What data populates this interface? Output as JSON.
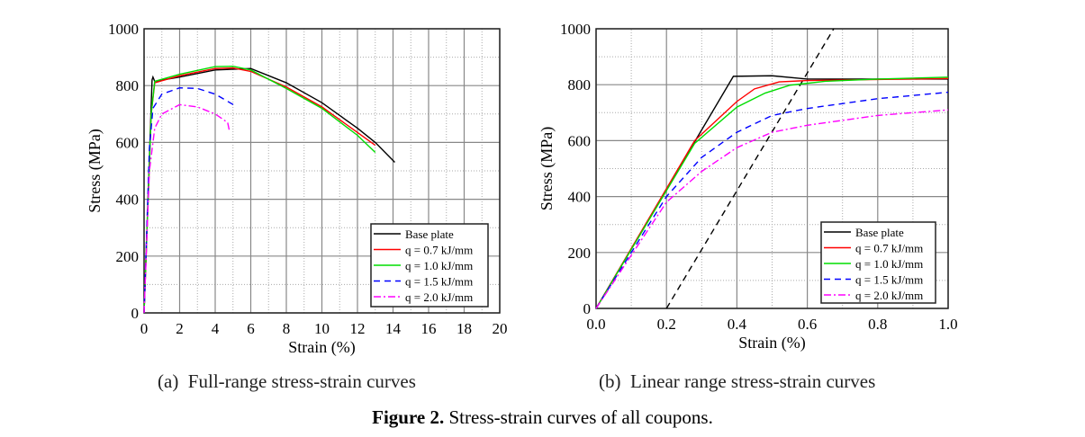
{
  "chart_data": [
    {
      "type": "line",
      "xlabel": "Strain (%)",
      "ylabel": "Stress (MPa)",
      "xlim": [
        0,
        20
      ],
      "ylim": [
        0,
        1000
      ],
      "xticks": [
        0,
        2,
        4,
        6,
        8,
        10,
        12,
        14,
        16,
        18,
        20
      ],
      "yticks": [
        0,
        200,
        400,
        600,
        800,
        1000
      ],
      "grid": true,
      "legend_position": "bottom-right",
      "series": [
        {
          "name": "Base plate",
          "color": "#000000",
          "dash": "solid",
          "points": [
            [
              0,
              0
            ],
            [
              0.45,
              820
            ],
            [
              0.5,
              830
            ],
            [
              0.6,
              815
            ],
            [
              2,
              830
            ],
            [
              4,
              855
            ],
            [
              6,
              860
            ],
            [
              8,
              810
            ],
            [
              10,
              740
            ],
            [
              12,
              650
            ],
            [
              13,
              600
            ],
            [
              14.1,
              530
            ]
          ]
        },
        {
          "name": "q = 0.7 kJ/mm",
          "color": "#ff0000",
          "dash": "solid",
          "points": [
            [
              0,
              0
            ],
            [
              0.4,
              700
            ],
            [
              0.6,
              810
            ],
            [
              2,
              835
            ],
            [
              4,
              860
            ],
            [
              5,
              862
            ],
            [
              6,
              850
            ],
            [
              8,
              795
            ],
            [
              10,
              725
            ],
            [
              12,
              635
            ],
            [
              13,
              590
            ]
          ]
        },
        {
          "name": "q = 1.0 kJ/mm",
          "color": "#00dd00",
          "dash": "solid",
          "points": [
            [
              0,
              0
            ],
            [
              0.4,
              700
            ],
            [
              0.6,
              815
            ],
            [
              2,
              840
            ],
            [
              4,
              867
            ],
            [
              5,
              868
            ],
            [
              6,
              855
            ],
            [
              8,
              790
            ],
            [
              10,
              720
            ],
            [
              12,
              625
            ],
            [
              13,
              565
            ]
          ]
        },
        {
          "name": "q = 1.5 kJ/mm",
          "color": "#0000ff",
          "dash": "dash",
          "points": [
            [
              0,
              0
            ],
            [
              0.3,
              580
            ],
            [
              0.5,
              720
            ],
            [
              1,
              770
            ],
            [
              2,
              792
            ],
            [
              3,
              790
            ],
            [
              4,
              770
            ],
            [
              5.1,
              730
            ]
          ]
        },
        {
          "name": "q = 2.0 kJ/mm",
          "color": "#ff00ff",
          "dash": "dashdot",
          "points": [
            [
              0,
              0
            ],
            [
              0.3,
              500
            ],
            [
              0.6,
              650
            ],
            [
              1,
              700
            ],
            [
              2,
              733
            ],
            [
              3,
              725
            ],
            [
              4,
              700
            ],
            [
              4.7,
              670
            ],
            [
              4.8,
              640
            ]
          ]
        }
      ]
    },
    {
      "type": "line",
      "xlabel": "Strain (%)",
      "ylabel": "Stress (MPa)",
      "xlim": [
        0,
        1.0
      ],
      "ylim": [
        0,
        1000
      ],
      "xticks": [
        "0.0",
        "0.2",
        "0.4",
        "0.6",
        "0.8",
        "1.0"
      ],
      "yticks": [
        0,
        200,
        400,
        600,
        800,
        1000
      ],
      "grid": true,
      "legend_position": "bottom-right",
      "series": [
        {
          "name": "Base plate",
          "color": "#000000",
          "dash": "solid",
          "points": [
            [
              0,
              0
            ],
            [
              0.39,
              830
            ],
            [
              0.5,
              832
            ],
            [
              0.6,
              820
            ],
            [
              1.0,
              820
            ]
          ]
        },
        {
          "name": "q = 0.7 kJ/mm",
          "color": "#ff0000",
          "dash": "solid",
          "points": [
            [
              0,
              0
            ],
            [
              0.28,
              600
            ],
            [
              0.4,
              740
            ],
            [
              0.45,
              785
            ],
            [
              0.52,
              810
            ],
            [
              0.6,
              815
            ],
            [
              1.0,
              822
            ]
          ]
        },
        {
          "name": "q = 1.0 kJ/mm",
          "color": "#00dd00",
          "dash": "solid",
          "points": [
            [
              0,
              0
            ],
            [
              0.28,
              590
            ],
            [
              0.4,
              720
            ],
            [
              0.48,
              770
            ],
            [
              0.55,
              798
            ],
            [
              0.65,
              812
            ],
            [
              0.8,
              820
            ],
            [
              1.0,
              827
            ]
          ]
        },
        {
          "name": "q = 1.5 kJ/mm",
          "color": "#0000ff",
          "dash": "dash",
          "points": [
            [
              0,
              0
            ],
            [
              0.2,
              400
            ],
            [
              0.3,
              540
            ],
            [
              0.4,
              630
            ],
            [
              0.5,
              690
            ],
            [
              0.6,
              715
            ],
            [
              0.8,
              750
            ],
            [
              1.0,
              773
            ]
          ]
        },
        {
          "name": "q = 2.0 kJ/mm",
          "color": "#ff00ff",
          "dash": "dashdot",
          "points": [
            [
              0,
              0
            ],
            [
              0.2,
              380
            ],
            [
              0.3,
              490
            ],
            [
              0.4,
              575
            ],
            [
              0.5,
              630
            ],
            [
              0.6,
              655
            ],
            [
              0.8,
              690
            ],
            [
              1.0,
              710
            ]
          ]
        }
      ],
      "offset_line": {
        "color": "#000000",
        "dash": "dash",
        "points": [
          [
            0.2,
            0
          ],
          [
            0.675,
            1000
          ]
        ]
      }
    }
  ],
  "captions": {
    "a": "(a)  Full-range stress-strain curves",
    "b": "(b)  Linear range stress-strain curves",
    "figure_label": "Figure 2.",
    "figure_text": " Stress-strain curves of all coupons."
  }
}
